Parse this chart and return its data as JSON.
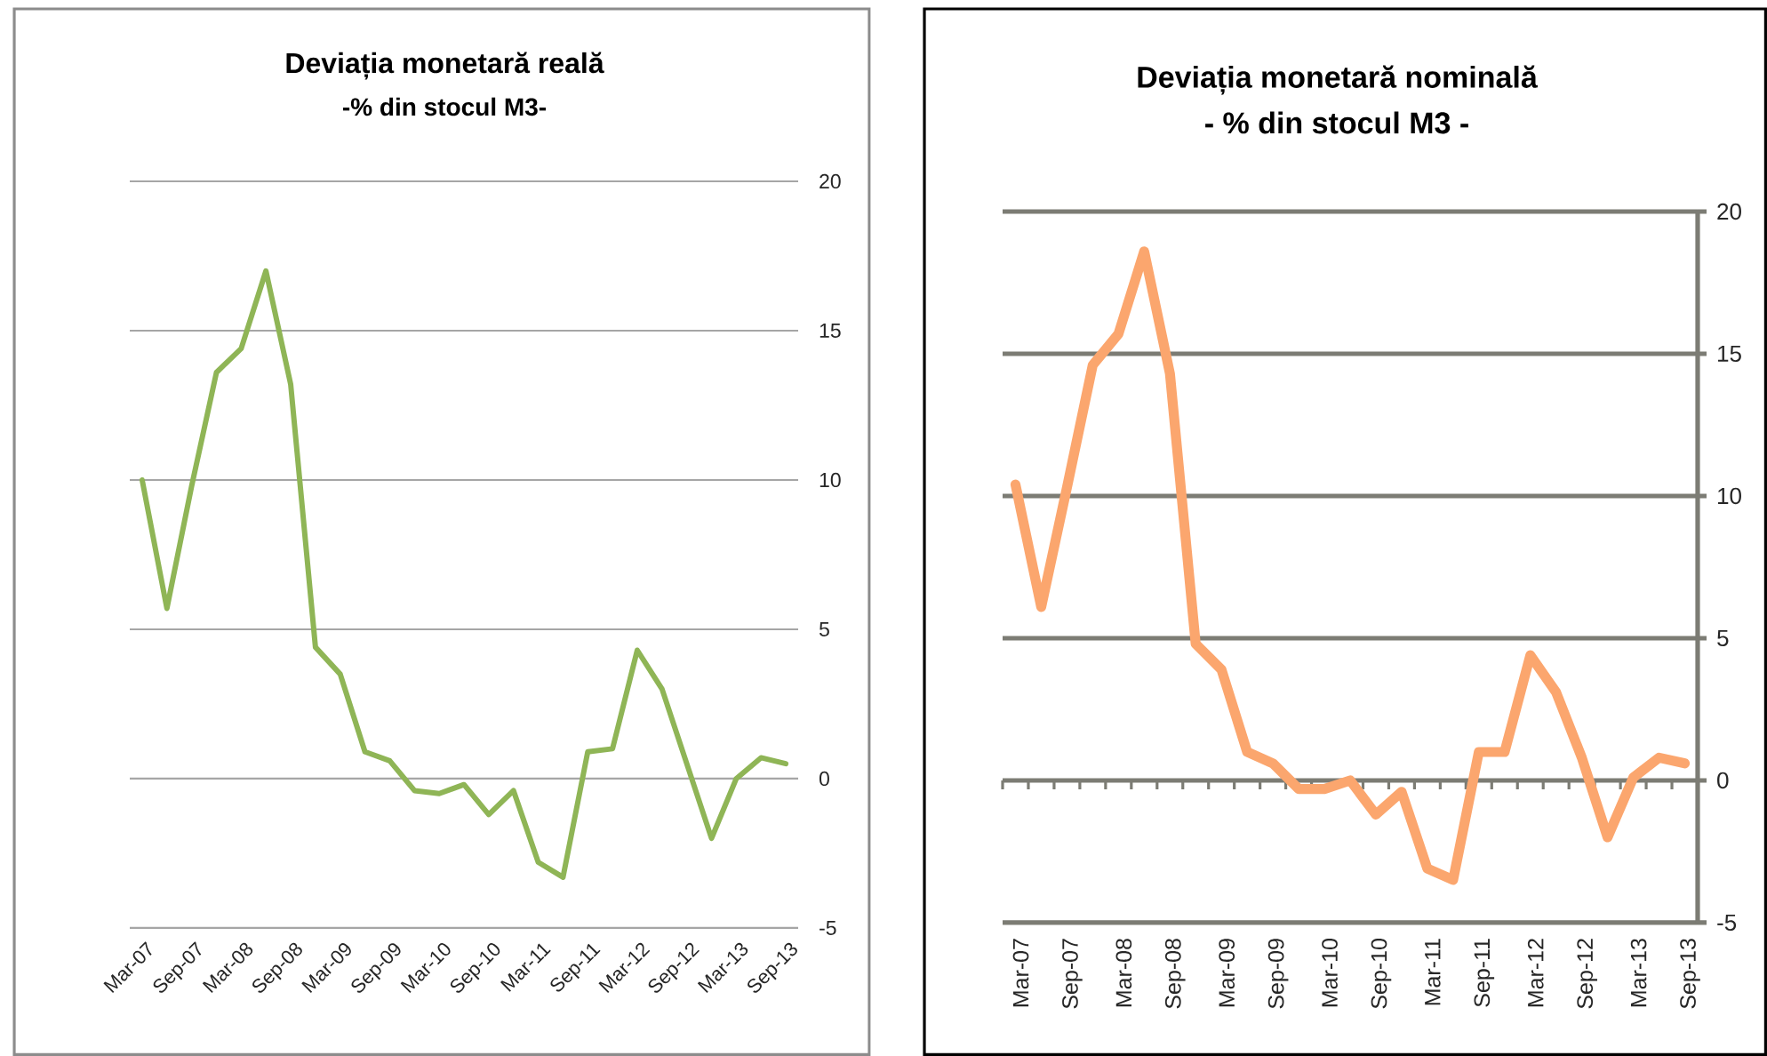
{
  "chart_data": [
    {
      "type": "line",
      "title": "Deviația monetară reală",
      "subtitle": "-% din stocul M3-",
      "categories": [
        "Mar-07",
        null,
        "Sep-07",
        null,
        "Mar-08",
        null,
        "Sep-08",
        null,
        "Mar-09",
        null,
        "Sep-09",
        null,
        "Mar-10",
        null,
        "Sep-10",
        null,
        "Mar-11",
        null,
        "Sep-11",
        null,
        "Mar-12",
        null,
        "Sep-12",
        null,
        "Mar-13",
        null,
        "Sep-13"
      ],
      "values": [
        10.0,
        5.7,
        9.8,
        13.6,
        14.4,
        17.0,
        13.2,
        4.4,
        3.5,
        0.9,
        0.6,
        -0.4,
        -0.5,
        -0.2,
        -1.2,
        -0.4,
        -2.8,
        -3.3,
        0.9,
        1.0,
        4.3,
        3.0,
        0.5,
        -2.0,
        0.0,
        0.7,
        0.5
      ],
      "color": "#8fb556",
      "ylim": [
        -5,
        20
      ],
      "yticks": [
        -5,
        0,
        5,
        10,
        15,
        20
      ],
      "grid": "y"
    },
    {
      "type": "line",
      "title": "Deviația monetară nominală",
      "subtitle": "- % din stocul M3 -",
      "categories": [
        "Mar-07",
        null,
        "Sep-07",
        null,
        "Mar-08",
        null,
        "Sep-08",
        null,
        "Mar-09",
        null,
        "Sep-09",
        null,
        "Mar-10",
        null,
        "Sep-10",
        null,
        "Mar-11",
        null,
        "Sep-11",
        null,
        "Mar-12",
        null,
        "Sep-12",
        null,
        "Mar-13",
        null,
        "Sep-13"
      ],
      "values": [
        10.4,
        6.1,
        10.3,
        14.6,
        15.7,
        18.6,
        14.3,
        4.8,
        3.9,
        1.0,
        0.6,
        -0.3,
        -0.3,
        0.0,
        -1.2,
        -0.4,
        -3.1,
        -3.5,
        1.0,
        1.0,
        4.4,
        3.1,
        0.8,
        -2.0,
        0.1,
        0.8,
        0.6
      ],
      "color": "#fba66e",
      "ylim": [
        -5,
        20
      ],
      "yticks": [
        -5,
        0,
        5,
        10,
        15,
        20
      ],
      "grid": "y"
    }
  ]
}
